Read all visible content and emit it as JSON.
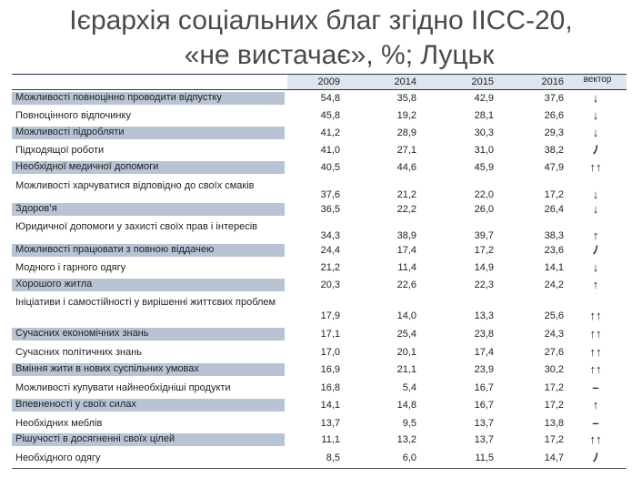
{
  "title": {
    "line1": "Ієрархія соціальних благ згідно ІІСС-20,",
    "line2": "«не вистачає», %; Луцьк"
  },
  "header": {
    "y2009": "2009",
    "y2014": "2014",
    "y2015": "2015",
    "y2016": "2016",
    "vector": "вектор"
  },
  "rows": [
    {
      "name": "Можливості повноцінно проводити відпустку",
      "v2009": "54,8",
      "v2014": "35,8",
      "v2015": "42,9",
      "v2016": "37,6",
      "vector": "↓",
      "highlight": true
    },
    {
      "name": "Повноцінного відпочинку",
      "v2009": "45,8",
      "v2014": "19,2",
      "v2015": "28,1",
      "v2016": "26,6",
      "vector": "↓",
      "highlight": false
    },
    {
      "name": "Можливості підробляти",
      "v2009": "41,2",
      "v2014": "28,9",
      "v2015": "30,3",
      "v2016": "29,3",
      "vector": "↓",
      "highlight": true
    },
    {
      "name": "Підходящої роботи",
      "v2009": "41,0",
      "v2014": "27,1",
      "v2015": "31,0",
      "v2016": "38,2",
      "vector": "ﾉ",
      "highlight": false
    },
    {
      "name": "Необхідної медичної допомоги",
      "v2009": "40,5",
      "v2014": "44,6",
      "v2015": "45,9",
      "v2016": "47,9",
      "vector": "↑↑",
      "highlight": true
    },
    {
      "name": "Можливості харчуватися відповідно до своїх смаків",
      "v2009": "37,6",
      "v2014": "21,2",
      "v2015": "22,0",
      "v2016": "17,2",
      "vector": "↓",
      "highlight": false
    },
    {
      "name": "Здоров’я",
      "v2009": "36,5",
      "v2014": "22,2",
      "v2015": "26,0",
      "v2016": "26,4",
      "vector": "↓",
      "highlight": true
    },
    {
      "name": "Юридичної допомоги у захисті своїх прав і інтересів",
      "v2009": "34,3",
      "v2014": "38,9",
      "v2015": "39,7",
      "v2016": "38,3",
      "vector": "↑",
      "highlight": false
    },
    {
      "name": "Можливості працювати з повною віддачею",
      "v2009": "24,4",
      "v2014": "17,4",
      "v2015": "17,2",
      "v2016": "23,6",
      "vector": "ﾉ",
      "highlight": true
    },
    {
      "name": "Модного і гарного одягу",
      "v2009": "21,2",
      "v2014": "11,4",
      "v2015": "14,9",
      "v2016": "14,1",
      "vector": "↓",
      "highlight": false
    },
    {
      "name": "Хорошого житла",
      "v2009": "20,3",
      "v2014": "22,6",
      "v2015": "22,3",
      "v2016": "24,2",
      "vector": "↑",
      "highlight": true
    },
    {
      "name": "Ініціативи і самостійності у вирішенні життєвих проблем",
      "v2009": "17,9",
      "v2014": "14,0",
      "v2015": "13,3",
      "v2016": "25,6",
      "vector": "↑↑",
      "highlight": false
    },
    {
      "name": "Сучасних економічних знань",
      "v2009": "17,1",
      "v2014": "25,4",
      "v2015": "23,8",
      "v2016": "24,3",
      "vector": "↑↑",
      "highlight": true
    },
    {
      "name": "Сучасних політичних знань",
      "v2009": "17,0",
      "v2014": "20,1",
      "v2015": "17,4",
      "v2016": "27,6",
      "vector": "↑↑",
      "highlight": false
    },
    {
      "name": "Вміння жити в нових суспільних умовах",
      "v2009": "16,9",
      "v2014": "21,1",
      "v2015": "23,9",
      "v2016": "30,2",
      "vector": "↑↑",
      "highlight": true
    },
    {
      "name": "Можливості купувати найнеобхідніші продукти",
      "v2009": "16,8",
      "v2014": "5,4",
      "v2015": "16,7",
      "v2016": "17,2",
      "vector": "–",
      "highlight": false
    },
    {
      "name": "Впевненості у своїх силах",
      "v2009": "14,1",
      "v2014": "14,8",
      "v2015": "16,7",
      "v2016": "17,2",
      "vector": "↑",
      "highlight": true
    },
    {
      "name": "Необхідних меблів",
      "v2009": "13,7",
      "v2014": "9,5",
      "v2015": "13,7",
      "v2016": "13,8",
      "vector": "–",
      "highlight": false
    },
    {
      "name": "Рішучості в досягненні своїх цілей",
      "v2009": "11,1",
      "v2014": "13,2",
      "v2015": "13,7",
      "v2016": "17,2",
      "vector": "↑↑",
      "highlight": true
    },
    {
      "name": "Необхідного одягу",
      "v2009": "8,5",
      "v2014": "6,0",
      "v2015": "11,5",
      "v2016": "14,7",
      "vector": "ﾉ",
      "highlight": false
    }
  ]
}
